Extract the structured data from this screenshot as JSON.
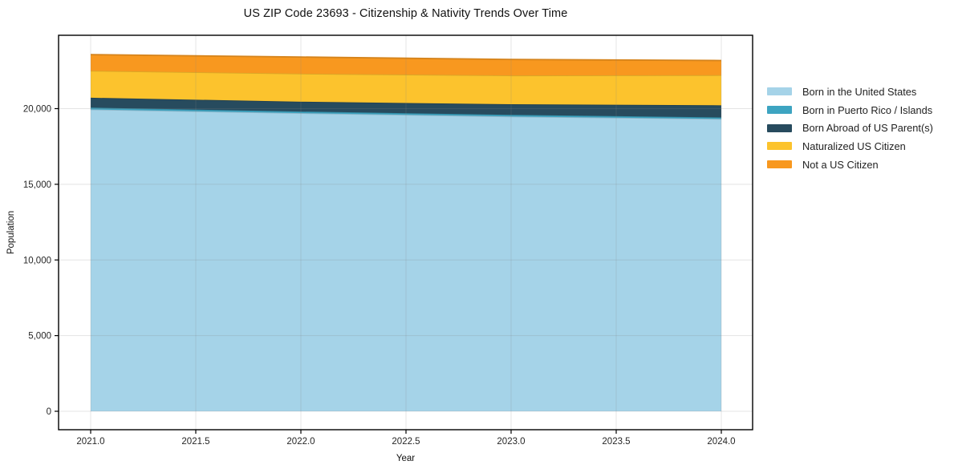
{
  "title": "US ZIP Code 23693 - Citizenship & Nativity Trends Over Time",
  "chart_data": {
    "type": "area",
    "stacked": true,
    "title": "US ZIP Code 23693 - Citizenship & Nativity Trends Over Time",
    "xlabel": "Year",
    "ylabel": "Population",
    "x": [
      2021,
      2022,
      2023,
      2024
    ],
    "series": [
      {
        "name": "Born in the United States",
        "color": "#a5d3e8",
        "values": [
          19950,
          19700,
          19480,
          19320
        ]
      },
      {
        "name": "Born in Puerto Rico / Islands",
        "color": "#3da4c1",
        "values": [
          120,
          110,
          110,
          100
        ]
      },
      {
        "name": "Born Abroad of US Parent(s)",
        "color": "#274b5e",
        "values": [
          650,
          650,
          700,
          800
        ]
      },
      {
        "name": "Naturalized US Citizen",
        "color": "#fcc32d",
        "values": [
          1780,
          1850,
          1900,
          1990
        ]
      },
      {
        "name": "Not a US Citizen",
        "color": "#f8981f",
        "values": [
          1070,
          1100,
          1060,
          970
        ]
      }
    ],
    "totals": [
      23570,
      23410,
      23250,
      23180
    ],
    "xlim": [
      2020.84,
      2024.15
    ],
    "ylim": [
      -1200,
      24800
    ],
    "xticks": {
      "values": [
        2021,
        2021.5,
        2022,
        2022.5,
        2023,
        2023.5,
        2024
      ],
      "labels": [
        "2021.0",
        "2021.5",
        "2022.0",
        "2022.5",
        "2023.0",
        "2023.5",
        "2024.0"
      ]
    },
    "yticks": {
      "values": [
        0,
        5000,
        10000,
        15000,
        20000
      ],
      "labels": [
        "0",
        "5,000",
        "10,000",
        "15,000",
        "20,000"
      ]
    },
    "grid": true,
    "legend_position": "right-outside",
    "axis_color": "#000000",
    "grid_color": "rgba(130,130,130,0.22)",
    "tick_label_color": "#262626"
  }
}
